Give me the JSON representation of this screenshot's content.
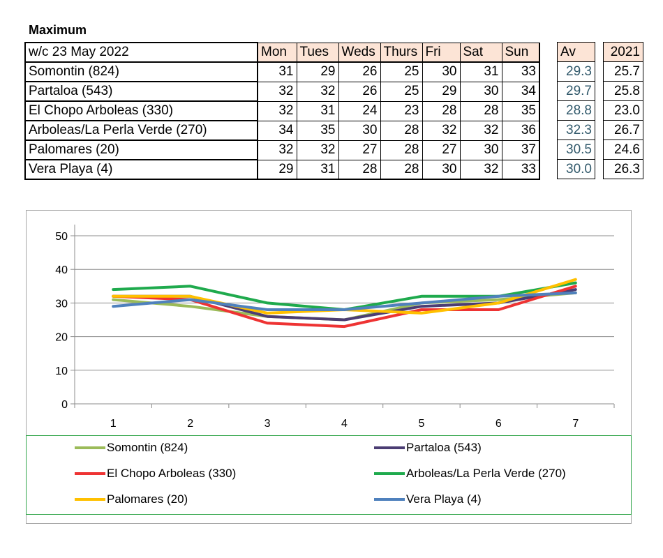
{
  "title": "Maximum",
  "table": {
    "week_label": "w/c 23 May 2022",
    "days": [
      "Mon",
      "Tues",
      "Weds",
      "Thurs",
      "Fri",
      "Sat",
      "Sun"
    ],
    "av_header": "Av",
    "y2021_header": "2021",
    "rows": [
      {
        "name": "Somontin (824)",
        "values": [
          "31",
          "29",
          "26",
          "25",
          "30",
          "31",
          "33"
        ],
        "av": "29.3",
        "y2021": "25.7"
      },
      {
        "name": "Partaloa (543)",
        "values": [
          "32",
          "32",
          "26",
          "25",
          "29",
          "30",
          "34"
        ],
        "av": "29.7",
        "y2021": "25.8"
      },
      {
        "name": "El Chopo  Arboleas (330)",
        "values": [
          "32",
          "31",
          "24",
          "23",
          "28",
          "28",
          "35"
        ],
        "av": "28.8",
        "y2021": "23.0"
      },
      {
        "name": "Arboleas/La Perla Verde (270)",
        "values": [
          "34",
          "35",
          "30",
          "28",
          "32",
          "32",
          "36"
        ],
        "av": "32.3",
        "y2021": "26.7"
      },
      {
        "name": "Palomares (20)",
        "values": [
          "32",
          "32",
          "27",
          "28",
          "27",
          "30",
          "37"
        ],
        "av": "30.5",
        "y2021": "24.6"
      },
      {
        "name": "Vera Playa (4)",
        "values": [
          "29",
          "31",
          "28",
          "28",
          "30",
          "32",
          "33"
        ],
        "av": "30.0",
        "y2021": "26.3"
      }
    ]
  },
  "chart_data": {
    "type": "line",
    "title": "",
    "xlabel": "",
    "ylabel": "",
    "x": [
      1,
      2,
      3,
      4,
      5,
      6,
      7
    ],
    "ylim": [
      0,
      50
    ],
    "yticks": [
      0,
      10,
      20,
      30,
      40,
      50
    ],
    "grid": true,
    "legend_position": "bottom",
    "series": [
      {
        "name": "Somontin (824)",
        "color": "#9bbb59",
        "values": [
          31,
          29,
          26,
          25,
          30,
          31,
          33
        ]
      },
      {
        "name": "Partaloa (543)",
        "color": "#4b3d73",
        "values": [
          32,
          32,
          26,
          25,
          29,
          30,
          34
        ]
      },
      {
        "name": "El Chopo  Arboleas (330)",
        "color": "#ee3333",
        "values": [
          32,
          31,
          24,
          23,
          28,
          28,
          35
        ]
      },
      {
        "name": "Arboleas/La Perla Verde (270)",
        "color": "#1faa4d",
        "values": [
          34,
          35,
          30,
          28,
          32,
          32,
          36
        ]
      },
      {
        "name": "Palomares (20)",
        "color": "#ffc000",
        "values": [
          32,
          32,
          27,
          28,
          27,
          30,
          37
        ]
      },
      {
        "name": "Vera Playa (4)",
        "color": "#4f81bd",
        "values": [
          29,
          31,
          28,
          28,
          30,
          32,
          33
        ]
      }
    ]
  }
}
